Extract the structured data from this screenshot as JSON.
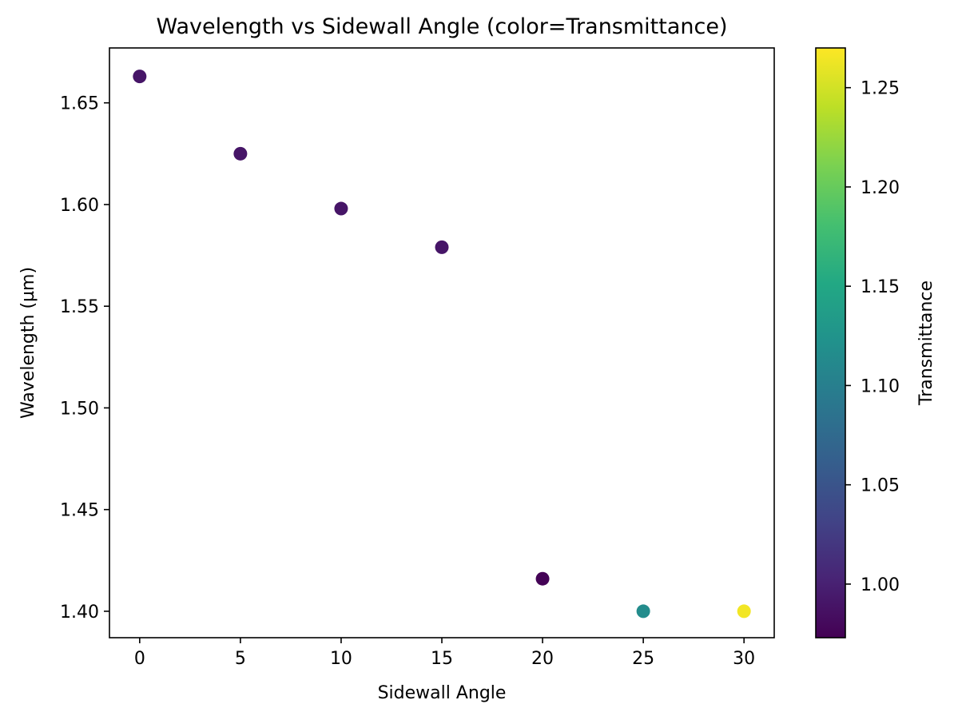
{
  "chart_data": {
    "type": "scatter",
    "title": "Wavelength vs Sidewall Angle (color=Transmittance)",
    "xlabel": "Sidewall Angle",
    "ylabel": "Wavelength (µm)",
    "xlim": [
      -1.5,
      31.5
    ],
    "ylim": [
      1.387,
      1.677
    ],
    "x_ticks": [
      0,
      5,
      10,
      15,
      20,
      25,
      30
    ],
    "x_tick_labels": [
      "0",
      "5",
      "10",
      "15",
      "20",
      "25",
      "30"
    ],
    "y_ticks": [
      1.4,
      1.45,
      1.5,
      1.55,
      1.6,
      1.65
    ],
    "y_tick_labels": [
      "1.40",
      "1.45",
      "1.50",
      "1.55",
      "1.60",
      "1.65"
    ],
    "points": [
      {
        "x": 0,
        "y": 1.663,
        "c": 0.99
      },
      {
        "x": 5,
        "y": 1.625,
        "c": 0.99
      },
      {
        "x": 10,
        "y": 1.598,
        "c": 0.99
      },
      {
        "x": 15,
        "y": 1.579,
        "c": 0.99
      },
      {
        "x": 20,
        "y": 1.416,
        "c": 0.975
      },
      {
        "x": 25,
        "y": 1.4,
        "c": 1.115
      },
      {
        "x": 30,
        "y": 1.4,
        "c": 1.265
      }
    ],
    "colorbar": {
      "label": "Transmittance",
      "colormap": "viridis",
      "clim": [
        0.973,
        1.27
      ],
      "ticks": [
        1.0,
        1.05,
        1.1,
        1.15,
        1.2,
        1.25
      ],
      "tick_labels": [
        "1.00",
        "1.05",
        "1.10",
        "1.15",
        "1.20",
        "1.25"
      ]
    },
    "grid": false,
    "legend": "none"
  }
}
